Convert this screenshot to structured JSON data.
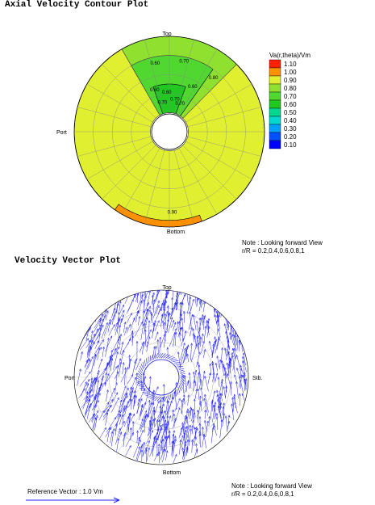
{
  "contour_plot": {
    "title": "Axial Velocity Contour Plot",
    "labels": {
      "top": "Top",
      "port": "Port",
      "bottom": "Bottom"
    },
    "legend_title": "Va(r,theta)/Vm",
    "colors": {
      "0.10": "#0000ff",
      "0.20": "#0050ff",
      "0.30": "#00a0ff",
      "0.40": "#00d8d0",
      "0.50": "#00d890",
      "0.60": "#20c820",
      "0.70": "#50d830",
      "0.80": "#90e030",
      "0.90": "#e0f030",
      "1.00": "#ff9000",
      "1.10": "#ff2000"
    },
    "note": "Note : Looking forward View",
    "radii": "r/R = 0.2,0.4,0.6,0.8,1"
  },
  "chart_data": [
    {
      "type": "contour",
      "title": "Axial Velocity Contour Plot",
      "legend": {
        "title": "Va(r,theta)/Vm",
        "levels": [
          "1.10",
          "1.00",
          "0.90",
          "0.80",
          "0.70",
          "0.60",
          "0.50",
          "0.40",
          "0.30",
          "0.20",
          "0.10"
        ]
      },
      "contour_labels": [
        "0.60",
        "0.70",
        "0.60",
        "0.70",
        "0.70",
        "0.80",
        "0.70",
        "0.60",
        "0.60",
        "0.90"
      ],
      "radial_rings": [
        0.2,
        0.4,
        0.6,
        0.8,
        1.0
      ],
      "grid_angle_step_deg": 15,
      "regions": [
        {
          "level": "0.90",
          "angle_deg": [
            0,
            360
          ],
          "r": [
            0.2,
            1.0
          ]
        },
        {
          "level": "0.80",
          "angle_deg": [
            -30,
            45
          ],
          "r": [
            0.2,
            1.0
          ]
        },
        {
          "level": "0.70",
          "angle_deg": [
            -30,
            35
          ],
          "r": [
            0.2,
            0.8
          ]
        },
        {
          "level": "0.60",
          "angle_deg": [
            -20,
            20
          ],
          "r": [
            0.2,
            0.5
          ]
        },
        {
          "level": "1.00",
          "angle_deg": [
            160,
            215
          ],
          "r": [
            0.93,
            1.0
          ]
        }
      ]
    },
    {
      "type": "vector",
      "title": "Velocity Vector Plot",
      "labels": {
        "top": "Top",
        "port": "Port",
        "stb": "Stb.",
        "bottom": "Bottom"
      },
      "reference_vector": "Reference Vector : 1.0 Vm",
      "radial_rings": [
        0.2,
        0.4,
        0.6,
        0.8,
        1.0
      ],
      "grid_angle_step_deg": 30
    }
  ],
  "vector_plot": {
    "title": "Velocity Vector Plot",
    "labels": {
      "top": "Top",
      "port": "Port",
      "stb": "Stb.",
      "bottom": "Bottom"
    },
    "note": "Note : Looking forward View",
    "radii": "r/R = 0.2,0.4,0.6,0.8,1",
    "reference_vector": "Reference Vector : 1.0 Vm",
    "arrow_color": "#2020ff"
  }
}
